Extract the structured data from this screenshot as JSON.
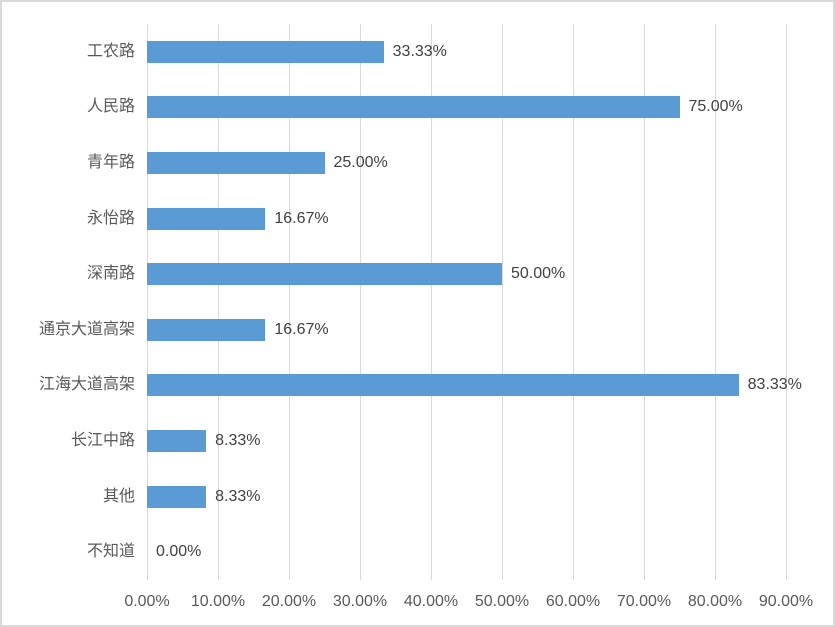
{
  "chart_data": {
    "type": "bar",
    "orientation": "horizontal",
    "title": "",
    "xlabel": "",
    "ylabel": "",
    "categories": [
      "工农路",
      "人民路",
      "青年路",
      "永怡路",
      "深南路",
      "通京大道高架",
      "江海大道高架",
      "长江中路",
      "其他",
      "不知道"
    ],
    "values": [
      33.33,
      75.0,
      25.0,
      16.67,
      50.0,
      16.67,
      83.33,
      8.33,
      8.33,
      0.0
    ],
    "data_labels": [
      "33.33%",
      "75.00%",
      "25.00%",
      "16.67%",
      "50.00%",
      "16.67%",
      "83.33%",
      "8.33%",
      "8.33%",
      "0.00%"
    ],
    "x_ticks": [
      "0.00%",
      "10.00%",
      "20.00%",
      "30.00%",
      "40.00%",
      "50.00%",
      "60.00%",
      "70.00%",
      "80.00%",
      "90.00%"
    ],
    "xlim": [
      0,
      90
    ],
    "grid": true,
    "legend": false,
    "colors": {
      "bar": "#5b9bd5",
      "gridline": "#d9d9d9",
      "category_label": "#595959",
      "data_label": "#404040",
      "axis_tick_label": "#595959",
      "frame_border": "#d9d9d9",
      "background": "#ffffff"
    }
  }
}
